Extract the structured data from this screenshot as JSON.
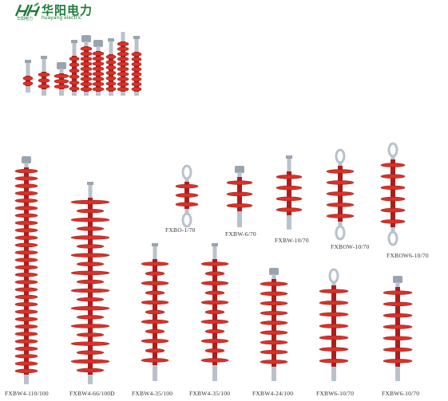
{
  "brand": {
    "name_cn": "华阳电力",
    "name_en": "huayang electric",
    "name_cn_small": "华阳电力",
    "logo_icon": "double-h-leaf-logo-icon",
    "color": "#1f7a3a"
  },
  "colors": {
    "insulator_red": "#d8322a",
    "insulator_dark": "#a8201c",
    "metal": "#b9c2cc",
    "label_text": "#333333"
  },
  "products": [
    {
      "model": "FXBW4-110/100"
    },
    {
      "model": "FXBW4-66/100D"
    },
    {
      "model": "FXBO-1/70"
    },
    {
      "model": "FXBW-6/70"
    },
    {
      "model": "FXBW-10/70"
    },
    {
      "model": "FXBOW-10/70"
    },
    {
      "model": "FXBOW6-10/70"
    },
    {
      "model": "FXBW4-35/100"
    },
    {
      "model": "FXBW4-35/100"
    },
    {
      "model": "FXBW4-24/100"
    },
    {
      "model": "FXBW6-10/70"
    },
    {
      "model": "FXBW6-10/70"
    }
  ]
}
